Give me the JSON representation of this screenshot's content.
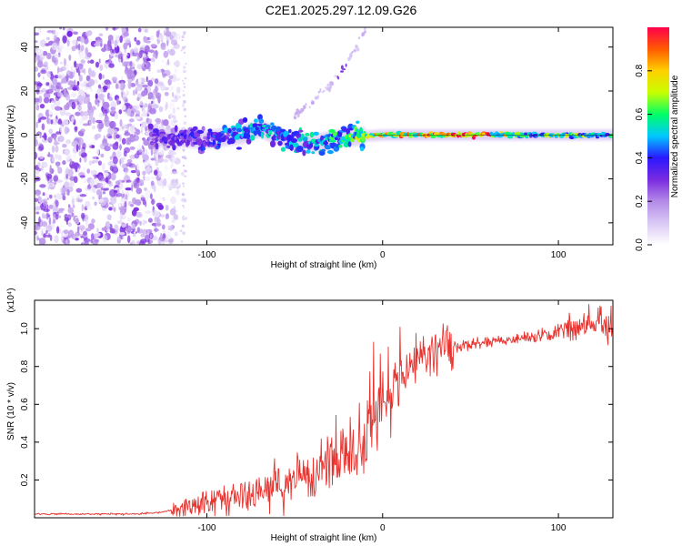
{
  "title": "C2E1.2025.297.12.09.G26",
  "colors": {
    "snr_line": "#e8322e",
    "colormap": [
      "#ffffff",
      "#d9c9f5",
      "#b48ae8",
      "#7a2be0",
      "#2a18ff",
      "#00c8ff",
      "#00ff66",
      "#c8ff00",
      "#ffd000",
      "#ff5a00",
      "#ff004c"
    ]
  },
  "chart_data": [
    {
      "type": "heatmap",
      "name": "spectrogram",
      "xlabel": "Height of straight line (km)",
      "ylabel": "Frequency (Hz)",
      "xlim": [
        -198,
        131
      ],
      "ylim": [
        -50,
        49
      ],
      "xticks": [
        -100,
        0,
        100
      ],
      "xtick_labels": [
        "-100",
        "0",
        "100"
      ],
      "yticks": [
        -40,
        -20,
        0,
        20,
        40
      ],
      "ytick_labels": [
        "-40",
        "-20",
        "0",
        "20",
        "40"
      ],
      "noise_region_x": [
        -198,
        -116
      ],
      "signal_ridge": {
        "x": [
          -130,
          -100,
          -80,
          -70,
          -55,
          -40,
          -20,
          0,
          20,
          60,
          100,
          131
        ],
        "freq": [
          -1,
          -2,
          0,
          3,
          -2,
          -4,
          -1,
          0,
          0,
          0,
          0,
          0
        ]
      },
      "signal_strength": {
        "x": [
          -130,
          -100,
          -70,
          -40,
          -20,
          0,
          20,
          40,
          60,
          80,
          100,
          131
        ],
        "amplitude": [
          0.3,
          0.4,
          0.5,
          0.5,
          0.6,
          0.8,
          0.85,
          1.0,
          0.9,
          0.6,
          0.7,
          0.6
        ]
      },
      "secondary_trace": {
        "x": [
          -52,
          -40,
          -30,
          -22,
          -15,
          -10
        ],
        "freq": [
          8,
          15,
          22,
          31,
          40,
          48
        ]
      },
      "colorbar": {
        "label": "Normalized spectral amplitude",
        "range": [
          0,
          1
        ],
        "ticks": [
          0.0,
          0.2,
          0.4,
          0.6,
          0.8
        ],
        "tick_labels": [
          "0.0",
          "0.2",
          "0.4",
          "0.6",
          "0.8"
        ]
      }
    },
    {
      "type": "line",
      "name": "snr",
      "xlabel": "Height of straight line (km)",
      "ylabel": "SNR (10 * v/v)",
      "y_multiplier": "(x10⁴)",
      "xlim": [
        -198,
        131
      ],
      "ylim": [
        0,
        1.15
      ],
      "xticks": [
        -100,
        0,
        100
      ],
      "xtick_labels": [
        "-100",
        "0",
        "100"
      ],
      "yticks": [
        0.2,
        0.4,
        0.6,
        0.8,
        1.0
      ],
      "ytick_labels": [
        "0.2",
        "0.4",
        "0.6",
        "0.8",
        "1.0"
      ],
      "series": [
        {
          "name": "SNR",
          "x": [
            -198,
            -180,
            -160,
            -140,
            -125,
            -115,
            -100,
            -90,
            -80,
            -70,
            -60,
            -50,
            -45,
            -40,
            -35,
            -30,
            -25,
            -20,
            -15,
            -10,
            -5,
            0,
            5,
            10,
            15,
            20,
            25,
            30,
            40,
            50,
            60,
            70,
            80,
            90,
            100,
            110,
            120,
            131
          ],
          "y": [
            0.02,
            0.02,
            0.02,
            0.02,
            0.03,
            0.05,
            0.08,
            0.11,
            0.12,
            0.14,
            0.17,
            0.18,
            0.21,
            0.25,
            0.3,
            0.28,
            0.32,
            0.33,
            0.38,
            0.42,
            0.52,
            0.58,
            0.66,
            0.74,
            0.79,
            0.83,
            0.86,
            0.88,
            0.9,
            0.92,
            0.93,
            0.94,
            0.95,
            0.97,
            0.98,
            1.0,
            1.02,
            1.03
          ]
        }
      ]
    }
  ]
}
